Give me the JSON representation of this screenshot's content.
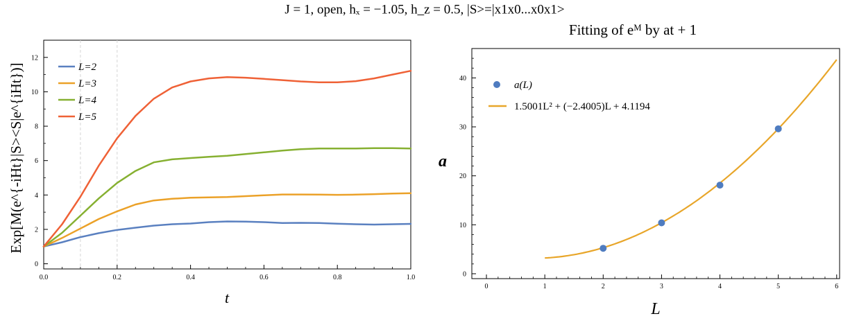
{
  "suptitle": "J = 1,  open,  hₓ = −1.05,  h_z = 0.5,  |S>=|x1x0...x0x1>",
  "colors": {
    "L2": "#5a80c0",
    "L3": "#eba128",
    "L4": "#86b031",
    "L5": "#ef6136",
    "points": "#4f7cc0",
    "fit": "#e8a62a",
    "grid": "#d6d6d6"
  },
  "chart_data": [
    {
      "type": "line",
      "title": "",
      "xlabel": "t",
      "ylabel": "Exp[M(e^{-iHt}|S><S|e^{iHt})]",
      "xlim": [
        0,
        1
      ],
      "ylim": [
        -0.3,
        13
      ],
      "x_ticks": [
        "0.0",
        "0.2",
        "0.4",
        "0.6",
        "0.8",
        "1.0"
      ],
      "y_ticks": [
        "0",
        "2",
        "4",
        "6",
        "8",
        "10",
        "12"
      ],
      "grid": "dashed vertical lines at t=0.1 and t=0.2",
      "legend_position": "top-left",
      "x": [
        0,
        0.05,
        0.1,
        0.15,
        0.2,
        0.25,
        0.3,
        0.35,
        0.4,
        0.45,
        0.5,
        0.55,
        0.6,
        0.65,
        0.7,
        0.75,
        0.8,
        0.85,
        0.9,
        0.95,
        1.0
      ],
      "series": [
        {
          "name": "L=2",
          "values": [
            1.0,
            1.25,
            1.55,
            1.78,
            1.97,
            2.1,
            2.22,
            2.3,
            2.34,
            2.42,
            2.46,
            2.45,
            2.42,
            2.37,
            2.38,
            2.37,
            2.33,
            2.3,
            2.28,
            2.3,
            2.32
          ]
        },
        {
          "name": "L=3",
          "values": [
            1.0,
            1.5,
            2.05,
            2.6,
            3.05,
            3.45,
            3.68,
            3.78,
            3.84,
            3.86,
            3.88,
            3.93,
            3.98,
            4.03,
            4.03,
            4.02,
            4.01,
            4.02,
            4.05,
            4.08,
            4.1
          ]
        },
        {
          "name": "L=4",
          "values": [
            1.0,
            1.8,
            2.8,
            3.8,
            4.7,
            5.4,
            5.9,
            6.07,
            6.15,
            6.22,
            6.28,
            6.38,
            6.48,
            6.58,
            6.66,
            6.7,
            6.7,
            6.7,
            6.72,
            6.72,
            6.7
          ]
        },
        {
          "name": "L=5",
          "values": [
            1.0,
            2.3,
            3.9,
            5.7,
            7.3,
            8.6,
            9.6,
            10.25,
            10.6,
            10.78,
            10.85,
            10.82,
            10.75,
            10.68,
            10.6,
            10.55,
            10.55,
            10.62,
            10.78,
            11.0,
            11.22
          ]
        }
      ]
    },
    {
      "type": "scatter",
      "title": "Fitting of  eᴹ  by  at + 1",
      "xlabel": "L",
      "ylabel": "a",
      "xlim": [
        -0.25,
        6.05
      ],
      "ylim": [
        -1,
        46
      ],
      "x_ticks": [
        "0",
        "1",
        "2",
        "3",
        "4",
        "5",
        "6"
      ],
      "y_ticks": [
        "0",
        "10",
        "20",
        "30",
        "40"
      ],
      "legend_position": "top-left",
      "points": {
        "name": "a(L)",
        "x": [
          2,
          3,
          4,
          5
        ],
        "y": [
          5.2,
          10.4,
          18.1,
          29.6
        ]
      },
      "fit": {
        "name": "1.5001L² + (−2.4005)L + 4.1194",
        "a": 1.5001,
        "b": -2.4005,
        "c": 4.1194,
        "x_range": [
          1,
          6
        ]
      }
    }
  ]
}
